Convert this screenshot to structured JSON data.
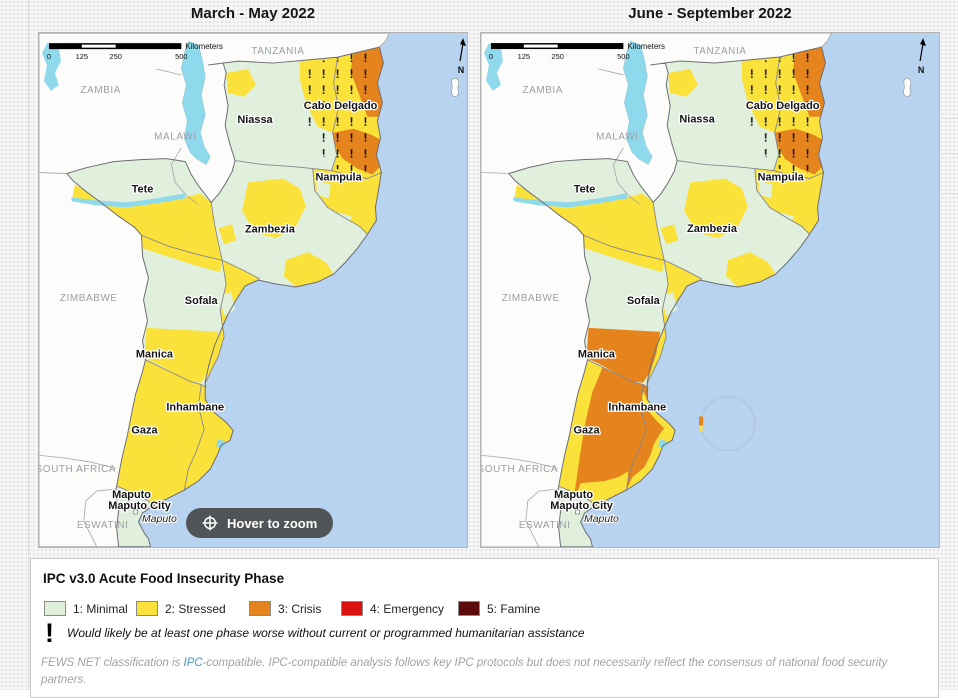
{
  "colors": {
    "ocean": "#b7d3f0",
    "land": "#fcfcfa",
    "inland_water": "#8fd9ec"
  },
  "phase_colors": {
    "minimal": "#e0f0dc",
    "stressed": "#fbe23b",
    "crisis": "#e5831d",
    "emergency": "#da1212",
    "famine": "#5c0a0a"
  },
  "maps": [
    {
      "title": "March - May 2022",
      "north_label": "N",
      "scale": {
        "ticks": [
          "0",
          "125",
          "250",
          "500"
        ],
        "unit": "Kilometers"
      },
      "hover_button": "Hover to zoom",
      "countries": {
        "tanzania": "TANZANIA",
        "zambia": "ZAMBIA",
        "malawi": "MALAWI",
        "zimbabwe": "ZIMBABWE",
        "south_africa": "SOUTH AFRICA",
        "eswatini": "ESWATINI"
      },
      "provinces": {
        "cabo_delgado": "Cabo Delgado",
        "niassa": "Niassa",
        "nampula": "Nampula",
        "tete": "Tete",
        "zambezia": "Zambezia",
        "sofala": "Sofala",
        "manica": "Manica",
        "inhambane": "Inhambane",
        "gaza": "Gaza",
        "maputo": "Maputo",
        "maputo_city": "Maputo City"
      },
      "city_label": "Maputo",
      "annotation_circle": false,
      "region_phases": {
        "base": "minimal",
        "niassa_nw": "stressed",
        "niassa_ne": "stressed",
        "cabo_delgado": "stressed",
        "cabo_delgado_coast": "crisis",
        "cabo_delgado_south": "crisis",
        "nampula": "stressed",
        "nampula_pocket_1": "minimal",
        "nampula_pocket_2": "minimal",
        "zambezia_center": "stressed",
        "zambezia_coast": "stressed",
        "zambezia_west": "stressed",
        "tete_south": "stressed",
        "sofala": "stressed",
        "sofala_pocket": "minimal",
        "manica_north": "stressed",
        "manica_south": "stressed",
        "gaza": "stressed",
        "gaza_west": "stressed",
        "gaza_south": "stressed",
        "inhambane": "stressed",
        "inhambane_coast": "stressed",
        "maputo_province": "minimal"
      }
    },
    {
      "title": "June - September 2022",
      "north_label": "N",
      "scale": {
        "ticks": [
          "0",
          "125",
          "250",
          "500"
        ],
        "unit": "Kilometers"
      },
      "hover_button": "",
      "countries": {
        "tanzania": "TANZANIA",
        "zambia": "ZAMBIA",
        "malawi": "MALAWI",
        "zimbabwe": "ZIMBABWE",
        "south_africa": "SOUTH AFRICA",
        "eswatini": "ESWATINI"
      },
      "provinces": {
        "cabo_delgado": "Cabo Delgado",
        "niassa": "Niassa",
        "nampula": "Nampula",
        "tete": "Tete",
        "zambezia": "Zambezia",
        "sofala": "Sofala",
        "manica": "Manica",
        "inhambane": "Inhambane",
        "gaza": "Gaza",
        "maputo": "Maputo",
        "maputo_city": "Maputo City"
      },
      "city_label": "Maputo",
      "annotation_circle": true,
      "region_phases": {
        "base": "minimal",
        "niassa_nw": "stressed",
        "niassa_ne": "stressed",
        "cabo_delgado": "stressed",
        "cabo_delgado_coast": "crisis",
        "cabo_delgado_south": "crisis",
        "nampula": "stressed",
        "nampula_pocket_1": "minimal",
        "nampula_pocket_2": "minimal",
        "zambezia_center": "stressed",
        "zambezia_coast": "stressed",
        "zambezia_west": "stressed",
        "tete_south": "stressed",
        "sofala": "stressed",
        "sofala_pocket": "minimal",
        "manica_north": "stressed",
        "manica_south": "crisis",
        "gaza": "crisis",
        "gaza_west": "stressed",
        "gaza_south": "stressed",
        "inhambane": "crisis",
        "inhambane_coast": "stressed",
        "maputo_province": "minimal"
      }
    }
  ],
  "legend": {
    "title": "IPC v3.0 Acute Food Insecurity Phase",
    "items": [
      {
        "label": "1: Minimal",
        "phase": "minimal"
      },
      {
        "label": "2: Stressed",
        "phase": "stressed"
      },
      {
        "label": "3: Crisis",
        "phase": "crisis"
      },
      {
        "label": "4: Emergency",
        "phase": "emergency"
      },
      {
        "label": "5: Famine",
        "phase": "famine"
      }
    ],
    "note_symbol": "!",
    "note": "Would likely be at least one phase worse without current or programmed humanitarian assistance",
    "footer_pre": "FEWS NET classification is ",
    "footer_link": "IPC",
    "footer_post": "-compatible. IPC-compatible analysis follows key IPC protocols but does not necessarily reflect the consensus of national food security",
    "footer_line2": "partners."
  }
}
